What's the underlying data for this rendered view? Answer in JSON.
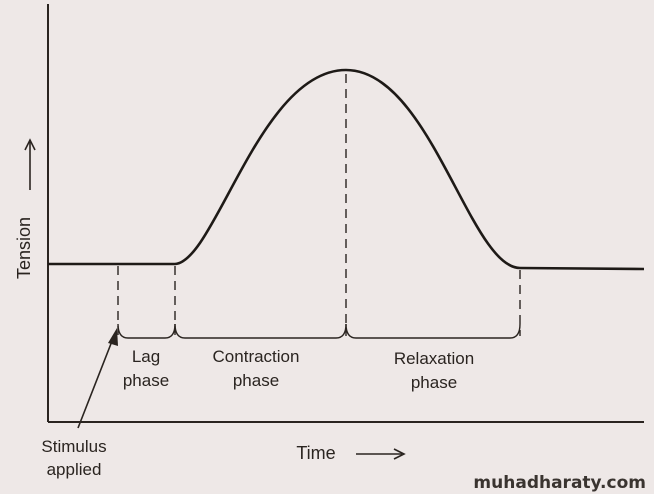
{
  "diagram": {
    "axes": {
      "y_label": "Tension",
      "x_label": "Time"
    },
    "phases": [
      {
        "line1": "Lag",
        "line2": "phase"
      },
      {
        "line1": "Contraction",
        "line2": "phase"
      },
      {
        "line1": "Relaxation",
        "line2": "phase"
      }
    ],
    "stimulus": {
      "line1": "Stimulus",
      "line2": "applied"
    },
    "curve_shape": "baseline, rise to single peak, fall back to baseline",
    "colors": {
      "background": "#eee8e7",
      "ink": "#2a2420"
    }
  },
  "watermark": "muhadharaty.com"
}
